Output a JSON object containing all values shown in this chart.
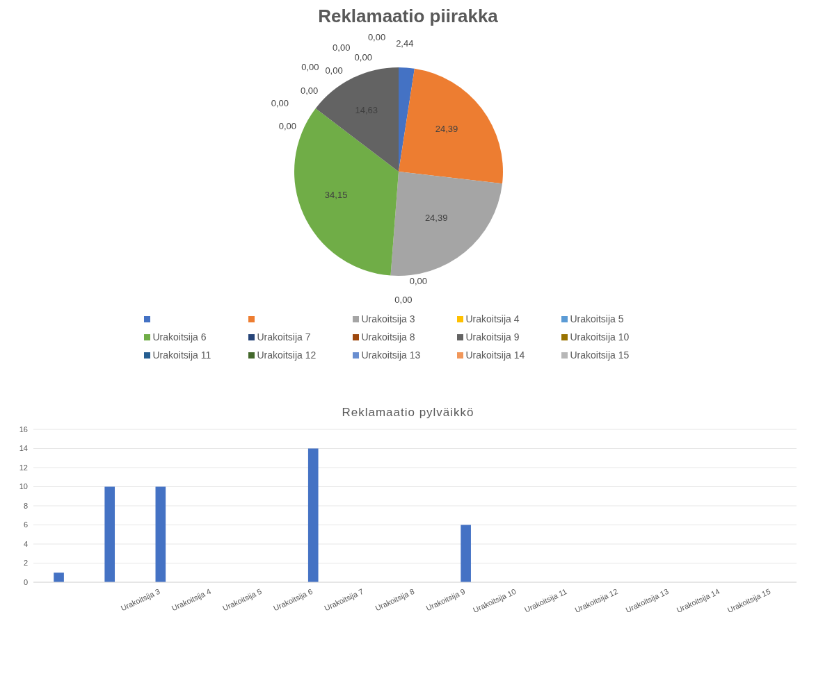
{
  "chart_data": [
    {
      "type": "pie",
      "title": "Reklamaatio piirakka",
      "categories": [
        null,
        null,
        "Urakoitsija 3",
        "Urakoitsija 4",
        "Urakoitsija 5",
        "Urakoitsija 6",
        "Urakoitsija 7",
        "Urakoitsija 8",
        "Urakoitsija 9",
        "Urakoitsija 10",
        "Urakoitsija 11",
        "Urakoitsija 12",
        "Urakoitsija 13",
        "Urakoitsija 14",
        "Urakoitsija 15"
      ],
      "values": [
        2.44,
        24.39,
        24.39,
        0,
        0,
        34.15,
        0,
        0,
        14.63,
        0,
        0,
        0,
        0,
        0,
        0
      ],
      "value_labels": [
        "2,44",
        "24,39",
        "24,39",
        "0,00",
        "0,00",
        "34,15",
        "0,00",
        "0,00",
        "14,63",
        "0,00",
        "0,00",
        "0,00",
        "0,00",
        "0,00",
        "0,00"
      ],
      "colors": [
        "#4472c4",
        "#ed7d31",
        "#a5a5a5",
        "#ffc000",
        "#5b9bd5",
        "#70ad47",
        "#264478",
        "#9e480e",
        "#636363",
        "#997300",
        "#255e91",
        "#43682b",
        "#698ed0",
        "#f1975a",
        "#b7b7b7"
      ],
      "legend": "bottom"
    },
    {
      "type": "bar",
      "title": "Reklamaatio pylväikkö",
      "categories": [
        null,
        null,
        "Urakoitsija 3",
        "Urakoitsija 4",
        "Urakoitsija 5",
        "Urakoitsija 6",
        "Urakoitsija 7",
        "Urakoitsija 8",
        "Urakoitsija 9",
        "Urakoitsija 10",
        "Urakoitsija 11",
        "Urakoitsija 12",
        "Urakoitsija 13",
        "Urakoitsija 14",
        "Urakoitsija 15"
      ],
      "values": [
        1,
        10,
        10,
        0,
        0,
        14,
        0,
        0,
        6,
        0,
        0,
        0,
        0,
        0,
        0
      ],
      "color": "#4472c4",
      "ylim": [
        0,
        16
      ],
      "yticks": [
        0,
        2,
        4,
        6,
        8,
        10,
        12,
        14,
        16
      ],
      "grid": "y"
    }
  ]
}
